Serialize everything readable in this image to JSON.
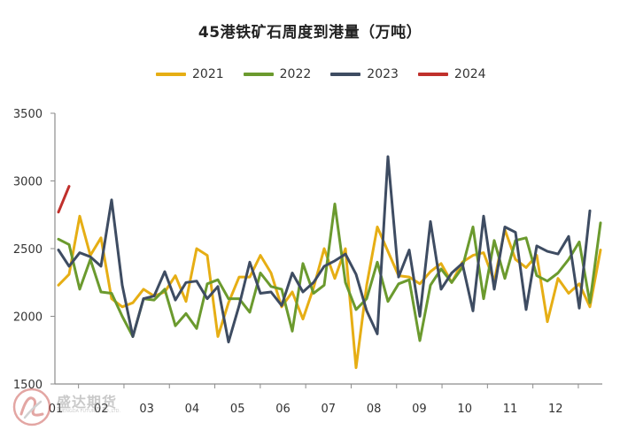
{
  "chart_data": {
    "type": "line",
    "title": "45港铁矿石周度到港量（万吨）",
    "xlabel": "",
    "ylabel": "",
    "x_unit": "week",
    "x_tick_labels": [
      "01",
      "02",
      "03",
      "04",
      "05",
      "06",
      "07",
      "08",
      "09",
      "10",
      "11",
      "12"
    ],
    "y_ticks": [
      1500,
      2000,
      2500,
      3000,
      3500
    ],
    "ylim": [
      1500,
      3500
    ],
    "grid": false,
    "legend_position": "top-center",
    "series": [
      {
        "name": "2021",
        "color": "#E6AE14",
        "values": [
          2230,
          2310,
          2740,
          2450,
          2580,
          2130,
          2070,
          2100,
          2200,
          2150,
          2180,
          2300,
          2110,
          2500,
          2450,
          1850,
          2100,
          2290,
          2290,
          2450,
          2320,
          2070,
          2180,
          1980,
          2210,
          2500,
          2280,
          2500,
          1620,
          2230,
          2660,
          2480,
          2300,
          2290,
          2240,
          2330,
          2390,
          2250,
          2400,
          2450,
          2470,
          2260,
          2640,
          2420,
          2360,
          2450,
          1960,
          2280,
          2170,
          2240,
          2070,
          2490
        ]
      },
      {
        "name": "2022",
        "color": "#6B9A2E",
        "values": [
          2570,
          2530,
          2200,
          2420,
          2180,
          2170,
          2000,
          1850,
          2130,
          2120,
          2200,
          1930,
          2020,
          1910,
          2240,
          2270,
          2130,
          2130,
          2030,
          2320,
          2220,
          2200,
          1890,
          2390,
          2170,
          2230,
          2830,
          2250,
          2050,
          2130,
          2400,
          2110,
          2240,
          2270,
          1820,
          2230,
          2350,
          2250,
          2360,
          2660,
          2130,
          2560,
          2280,
          2560,
          2580,
          2300,
          2260,
          2320,
          2420,
          2550,
          2100,
          2690
        ]
      },
      {
        "name": "2023",
        "color": "#3E4C62",
        "values": [
          2490,
          2370,
          2470,
          2440,
          2370,
          2860,
          2230,
          1850,
          2130,
          2150,
          2330,
          2120,
          2250,
          2260,
          2130,
          2220,
          1810,
          2080,
          2400,
          2170,
          2180,
          2080,
          2320,
          2180,
          2250,
          2370,
          2410,
          2460,
          2310,
          2040,
          1870,
          3180,
          2290,
          2490,
          2000,
          2700,
          2200,
          2320,
          2390,
          2040,
          2740,
          2200,
          2660,
          2620,
          2050,
          2520,
          2480,
          2460,
          2590,
          2060,
          2780
        ]
      },
      {
        "name": "2024",
        "color": "#C0302C",
        "values": [
          2770,
          2960
        ]
      }
    ]
  },
  "watermark": {
    "name_cn": "盛达期货",
    "name_en": "SHENGDA FUTURES CO.,LTD."
  }
}
